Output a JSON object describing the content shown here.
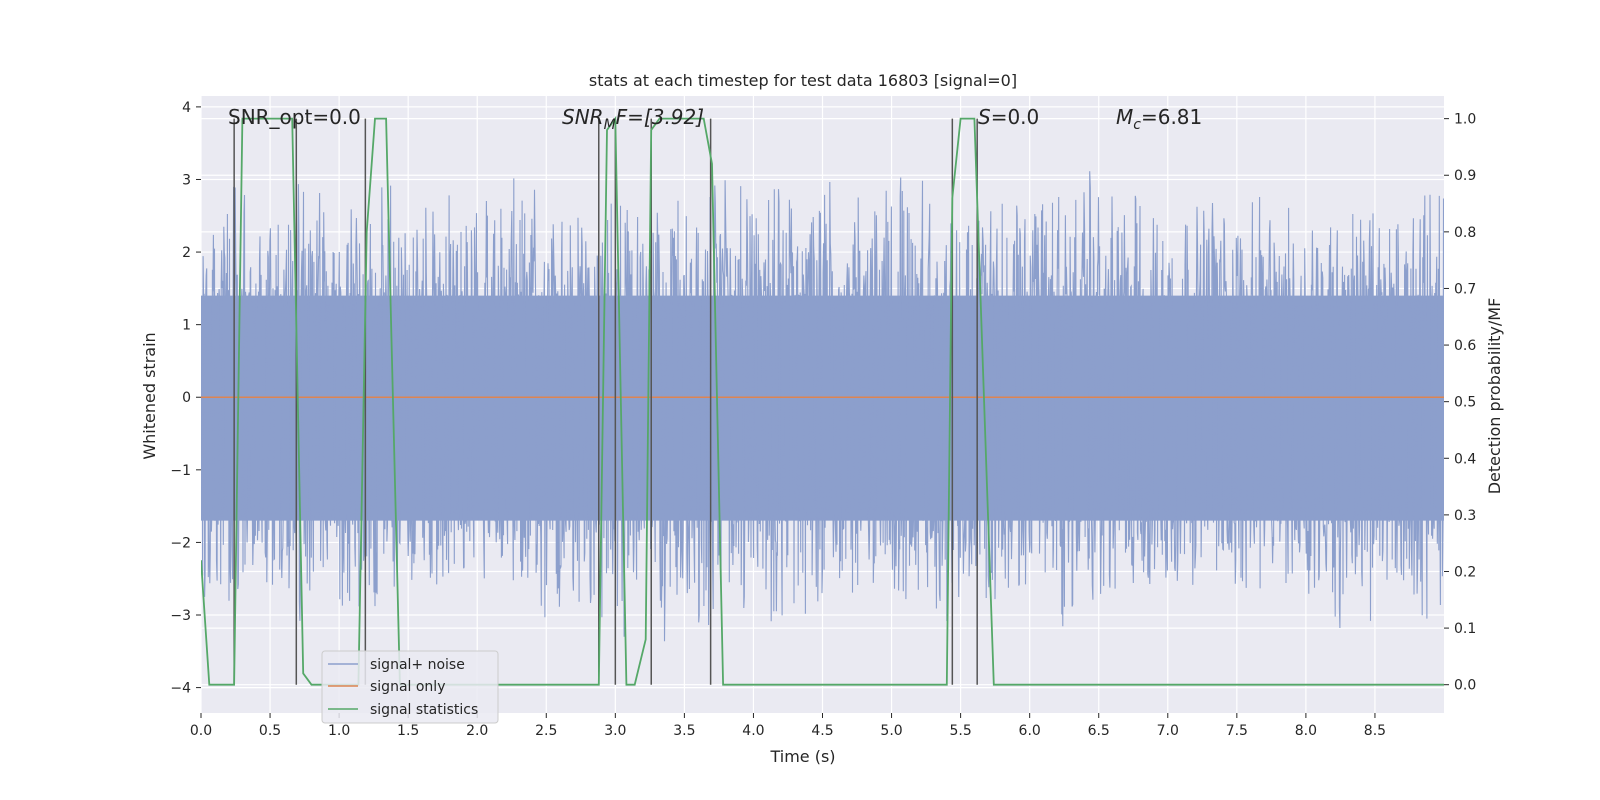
{
  "chart_data": {
    "type": "line",
    "title": "stats at each timestep for test data 16803 [signal=0]",
    "xlabel": "Time (s)",
    "ylabel": "Whitened strain",
    "ylabel_right": "Detection probability/MF",
    "xlim": [
      0,
      9.0
    ],
    "ylim": [
      -4.35,
      4.15
    ],
    "ylim_right": [
      -0.05,
      1.04
    ],
    "x_ticks": [
      0.0,
      0.5,
      1.0,
      1.5,
      2.0,
      2.5,
      3.0,
      3.5,
      4.0,
      4.5,
      5.0,
      5.5,
      6.0,
      6.5,
      7.0,
      7.5,
      8.0,
      8.5
    ],
    "x_tick_labels": [
      "0.0",
      "0.5",
      "1.0",
      "1.5",
      "2.0",
      "2.5",
      "3.0",
      "3.5",
      "4.0",
      "4.5",
      "5.0",
      "5.5",
      "6.0",
      "6.5",
      "7.0",
      "7.5",
      "8.0",
      "8.5"
    ],
    "y_ticks": [
      -4,
      -3,
      -2,
      -1,
      0,
      1,
      2,
      3,
      4
    ],
    "y_tick_labels": [
      "−4",
      "−3",
      "−2",
      "−1",
      "0",
      "1",
      "2",
      "3",
      "4"
    ],
    "y_ticks_right": [
      0.0,
      0.1,
      0.2,
      0.3,
      0.4,
      0.5,
      0.6,
      0.7,
      0.8,
      0.9,
      1.0
    ],
    "y_tick_labels_right": [
      "0.0",
      "0.1",
      "0.2",
      "0.3",
      "0.4",
      "0.5",
      "0.6",
      "0.7",
      "0.8",
      "0.9",
      "1.0"
    ],
    "grid": true,
    "legend_position": "bottom-left",
    "legend": [
      {
        "label": "signal+ noise",
        "color": "#8c9fcc"
      },
      {
        "label": "signal only",
        "color": "#dd8452"
      },
      {
        "label": "signal statistics",
        "color": "#55a868"
      }
    ],
    "annotations": {
      "snr_opt": "SNR_opt=0.0",
      "snr_mf_main": "SNR",
      "snr_mf_sub": "M",
      "snr_mf_rest": "F=[3.92]",
      "s_main": "S",
      "s_rest": "=0.0",
      "mc_main": "M",
      "mc_sub": "c",
      "mc_rest": "=6.81"
    },
    "noise": {
      "name": "signal+ noise",
      "color": "#8c9fcc",
      "x_range": [
        0,
        9.0
      ],
      "core_band": [
        -1.7,
        1.4
      ],
      "peaks_upper": [
        [
          0.0,
          1.9
        ],
        [
          0.05,
          2.3
        ],
        [
          0.12,
          2.2
        ],
        [
          0.2,
          2.6
        ],
        [
          0.28,
          3.3
        ],
        [
          0.35,
          2.4
        ],
        [
          0.45,
          2.3
        ],
        [
          0.52,
          3.0
        ],
        [
          0.6,
          2.5
        ],
        [
          0.7,
          3.0
        ],
        [
          0.78,
          2.7
        ],
        [
          0.85,
          3.2
        ],
        [
          0.95,
          2.3
        ],
        [
          1.05,
          2.9
        ],
        [
          1.15,
          2.4
        ],
        [
          1.25,
          2.8
        ],
        [
          1.35,
          3.2
        ],
        [
          1.45,
          2.5
        ],
        [
          1.55,
          2.3
        ],
        [
          1.65,
          2.9
        ],
        [
          1.75,
          2.6
        ],
        [
          1.85,
          3.0
        ],
        [
          1.95,
          2.4
        ],
        [
          2.05,
          2.8
        ],
        [
          2.15,
          2.5
        ],
        [
          2.25,
          3.2
        ],
        [
          2.35,
          2.7
        ],
        [
          2.45,
          3.1
        ],
        [
          2.55,
          2.4
        ],
        [
          2.65,
          2.9
        ],
        [
          2.75,
          2.6
        ],
        [
          2.85,
          2.4
        ],
        [
          2.95,
          2.7
        ],
        [
          3.05,
          2.9
        ],
        [
          3.15,
          2.5
        ],
        [
          3.25,
          2.8
        ],
        [
          3.35,
          2.6
        ],
        [
          3.45,
          3.0
        ],
        [
          3.55,
          2.7
        ],
        [
          3.65,
          2.6
        ],
        [
          3.75,
          3.2
        ],
        [
          3.85,
          2.9
        ],
        [
          3.95,
          3.1
        ],
        [
          4.05,
          2.6
        ],
        [
          4.15,
          2.9
        ],
        [
          4.25,
          3.1
        ],
        [
          4.35,
          2.7
        ],
        [
          4.45,
          2.6
        ],
        [
          4.55,
          3.0
        ],
        [
          4.65,
          2.7
        ],
        [
          4.75,
          2.9
        ],
        [
          4.85,
          3.3
        ],
        [
          4.95,
          2.8
        ],
        [
          5.05,
          3.2
        ],
        [
          5.15,
          2.9
        ],
        [
          5.25,
          3.1
        ],
        [
          5.35,
          2.7
        ],
        [
          5.45,
          3.0
        ],
        [
          5.55,
          2.9
        ],
        [
          5.65,
          2.6
        ],
        [
          5.75,
          3.1
        ],
        [
          5.85,
          2.7
        ],
        [
          5.95,
          2.9
        ],
        [
          6.05,
          2.6
        ],
        [
          6.15,
          3.1
        ],
        [
          6.25,
          2.9
        ],
        [
          6.35,
          2.7
        ],
        [
          6.45,
          3.2
        ],
        [
          6.55,
          2.6
        ],
        [
          6.65,
          3.0
        ],
        [
          6.75,
          2.9
        ],
        [
          6.85,
          2.7
        ],
        [
          6.95,
          2.5
        ],
        [
          7.05,
          2.8
        ],
        [
          7.15,
          2.6
        ],
        [
          7.25,
          2.7
        ],
        [
          7.35,
          2.9
        ],
        [
          7.45,
          2.4
        ],
        [
          7.55,
          2.5
        ],
        [
          7.65,
          2.8
        ],
        [
          7.75,
          2.6
        ],
        [
          7.85,
          2.7
        ],
        [
          7.95,
          2.5
        ],
        [
          8.05,
          2.7
        ],
        [
          8.15,
          2.6
        ],
        [
          8.25,
          2.4
        ],
        [
          8.35,
          2.7
        ],
        [
          8.45,
          2.6
        ],
        [
          8.55,
          2.5
        ],
        [
          8.65,
          2.6
        ],
        [
          8.75,
          2.3
        ],
        [
          8.85,
          2.9
        ],
        [
          8.95,
          3.0
        ]
      ],
      "peaks_lower": [
        [
          0.0,
          -2.6
        ],
        [
          0.05,
          -2.9
        ],
        [
          0.12,
          -3.1
        ],
        [
          0.2,
          -3.0
        ],
        [
          0.28,
          -2.6
        ],
        [
          0.35,
          -2.8
        ],
        [
          0.45,
          -2.5
        ],
        [
          0.52,
          -2.8
        ],
        [
          0.6,
          -2.7
        ],
        [
          0.7,
          -3.3
        ],
        [
          0.78,
          -3.0
        ],
        [
          0.85,
          -3.2
        ],
        [
          0.95,
          -3.1
        ],
        [
          1.05,
          -2.8
        ],
        [
          1.15,
          -2.9
        ],
        [
          1.25,
          -3.0
        ],
        [
          1.35,
          -2.6
        ],
        [
          1.45,
          -2.8
        ],
        [
          1.55,
          -2.5
        ],
        [
          1.65,
          -2.6
        ],
        [
          1.75,
          -2.7
        ],
        [
          1.85,
          -2.5
        ],
        [
          1.95,
          -2.9
        ],
        [
          2.05,
          -2.8
        ],
        [
          2.15,
          -2.5
        ],
        [
          2.25,
          -2.9
        ],
        [
          2.35,
          -2.6
        ],
        [
          2.45,
          -2.8
        ],
        [
          2.55,
          -3.4
        ],
        [
          2.65,
          -3.0
        ],
        [
          2.75,
          -3.2
        ],
        [
          2.85,
          -3.2
        ],
        [
          2.95,
          -2.9
        ],
        [
          3.05,
          -3.4
        ],
        [
          3.15,
          -2.7
        ],
        [
          3.25,
          -2.8
        ],
        [
          3.35,
          -3.4
        ],
        [
          3.45,
          -2.9
        ],
        [
          3.55,
          -3.0
        ],
        [
          3.65,
          -3.4
        ],
        [
          3.75,
          -2.8
        ],
        [
          3.85,
          -3.1
        ],
        [
          3.95,
          -2.9
        ],
        [
          4.05,
          -2.7
        ],
        [
          4.15,
          -3.3
        ],
        [
          4.25,
          -2.8
        ],
        [
          4.35,
          -2.9
        ],
        [
          4.45,
          -3.3
        ],
        [
          4.55,
          -2.7
        ],
        [
          4.65,
          -2.5
        ],
        [
          4.75,
          -2.8
        ],
        [
          4.85,
          -2.6
        ],
        [
          4.95,
          -2.5
        ],
        [
          5.05,
          -2.7
        ],
        [
          5.15,
          -2.9
        ],
        [
          5.25,
          -2.6
        ],
        [
          5.35,
          -3.5
        ],
        [
          5.45,
          -2.8
        ],
        [
          5.55,
          -2.7
        ],
        [
          5.65,
          -2.5
        ],
        [
          5.75,
          -3.3
        ],
        [
          5.85,
          -2.8
        ],
        [
          5.95,
          -2.6
        ],
        [
          6.05,
          -2.9
        ],
        [
          6.15,
          -3.0
        ],
        [
          6.25,
          -3.3
        ],
        [
          6.35,
          -2.7
        ],
        [
          6.45,
          -2.8
        ],
        [
          6.55,
          -3.0
        ],
        [
          6.65,
          -2.7
        ],
        [
          6.75,
          -2.6
        ],
        [
          6.85,
          -2.6
        ],
        [
          6.95,
          -2.8
        ],
        [
          7.05,
          -2.7
        ],
        [
          7.15,
          -2.5
        ],
        [
          7.25,
          -2.8
        ],
        [
          7.35,
          -2.9
        ],
        [
          7.45,
          -2.6
        ],
        [
          7.55,
          -2.7
        ],
        [
          7.65,
          -2.8
        ],
        [
          7.75,
          -2.5
        ],
        [
          7.85,
          -2.6
        ],
        [
          7.95,
          -2.8
        ],
        [
          8.05,
          -2.9
        ],
        [
          8.15,
          -2.7
        ],
        [
          8.25,
          -3.3
        ],
        [
          8.35,
          -2.6
        ],
        [
          8.45,
          -3.4
        ],
        [
          8.55,
          -2.8
        ],
        [
          8.65,
          -3.0
        ],
        [
          8.75,
          -2.5
        ],
        [
          8.85,
          -3.2
        ],
        [
          8.95,
          -3.0
        ]
      ]
    },
    "series": [
      {
        "name": "signal only",
        "axis": "left",
        "color": "#dd8452",
        "x": [
          0.0,
          9.0
        ],
        "y": [
          0.0,
          0.0
        ]
      },
      {
        "name": "signal statistics",
        "axis": "right",
        "color": "#55a868",
        "x": [
          0.0,
          0.06,
          0.24,
          0.3,
          0.66,
          0.74,
          0.8,
          1.14,
          1.2,
          1.26,
          1.34,
          1.44,
          2.88,
          2.94,
          3.0,
          3.08,
          3.14,
          3.22,
          3.26,
          3.32,
          3.64,
          3.7,
          3.78,
          3.86,
          5.4,
          5.44,
          5.5,
          5.6,
          5.74,
          9.0
        ],
        "y": [
          0.22,
          0.0,
          0.0,
          1.0,
          1.0,
          0.02,
          0.0,
          0.0,
          0.8,
          1.0,
          1.0,
          0.0,
          0.0,
          0.98,
          1.0,
          0.0,
          0.0,
          0.08,
          0.98,
          1.0,
          1.0,
          0.92,
          0.0,
          0.0,
          0.0,
          0.86,
          1.0,
          1.0,
          0.0,
          0.0
        ]
      }
    ],
    "vertical_lines": {
      "color": "#555555",
      "x": [
        0.24,
        0.69,
        1.19,
        2.88,
        3.0,
        3.26,
        3.69,
        5.44,
        5.62
      ],
      "top": 1.0,
      "bottom": 0.0
    }
  }
}
